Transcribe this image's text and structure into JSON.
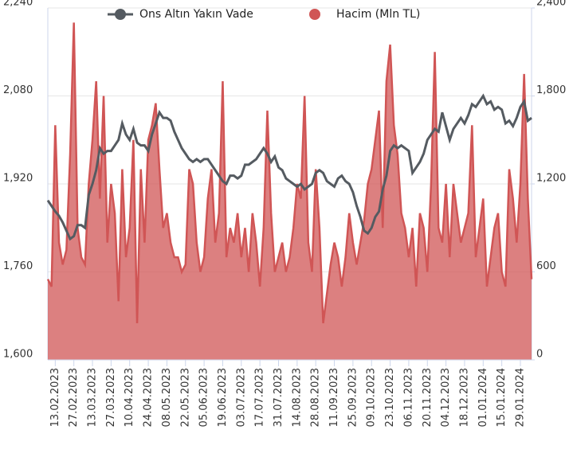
{
  "chart_data": {
    "type": "line",
    "categories": [
      null,
      null,
      "13.02.2023",
      null,
      null,
      null,
      null,
      "27.02.2023",
      null,
      null,
      null,
      null,
      "13.03.2023",
      null,
      null,
      null,
      null,
      "27.03.2023",
      null,
      null,
      null,
      null,
      "10.04.2023",
      null,
      null,
      null,
      null,
      "24.04.2023",
      null,
      null,
      null,
      null,
      "08.05.2023",
      null,
      null,
      null,
      null,
      "22.05.2023",
      null,
      null,
      null,
      null,
      "05.06.2023",
      null,
      null,
      null,
      null,
      "19.06.2023",
      null,
      null,
      null,
      null,
      "03.07.2023",
      null,
      null,
      null,
      null,
      "17.07.2023",
      null,
      null,
      null,
      null,
      "31.07.2023",
      null,
      null,
      null,
      null,
      "14.08.2023",
      null,
      null,
      null,
      null,
      "28.08.2023",
      null,
      null,
      null,
      null,
      "11.09.2023",
      null,
      null,
      null,
      null,
      "25.09.2023",
      null,
      null,
      null,
      null,
      "09.10.2023",
      null,
      null,
      null,
      null,
      "23.10.2023",
      null,
      null,
      null,
      null,
      "06.11.2023",
      null,
      null,
      null,
      null,
      "20.11.2023",
      null,
      null,
      null,
      null,
      "04.12.2023",
      null,
      null,
      null,
      null,
      "18.12.2023",
      null,
      null,
      null,
      null,
      "01.01.2024",
      null,
      null,
      null,
      null,
      "15.01.2024",
      null,
      null,
      null,
      null,
      "29.01.2024",
      null,
      null,
      null
    ],
    "series": [
      {
        "name": "Ons Altın Yakın Vade",
        "type": "line",
        "axis": "y",
        "color": "#555b61",
        "values": [
          1890,
          1880,
          1870,
          1862,
          1850,
          1835,
          1820,
          1825,
          1845,
          1845,
          1840,
          1900,
          1920,
          1945,
          1985,
          1975,
          1980,
          1980,
          1990,
          2000,
          2030,
          2010,
          2000,
          2020,
          1995,
          1990,
          1990,
          1980,
          2010,
          2030,
          2050,
          2040,
          2040,
          2035,
          2015,
          2000,
          1985,
          1975,
          1965,
          1960,
          1965,
          1960,
          1965,
          1965,
          1955,
          1945,
          1935,
          1925,
          1920,
          1935,
          1935,
          1930,
          1935,
          1955,
          1955,
          1960,
          1965,
          1975,
          1985,
          1975,
          1960,
          1970,
          1950,
          1945,
          1930,
          1925,
          1920,
          1915,
          1920,
          1910,
          1915,
          1920,
          1940,
          1945,
          1940,
          1925,
          1920,
          1915,
          1930,
          1935,
          1925,
          1920,
          1905,
          1880,
          1860,
          1835,
          1830,
          1840,
          1860,
          1870,
          1910,
          1935,
          1980,
          1990,
          1985,
          1990,
          1985,
          1980,
          1940,
          1950,
          1960,
          1975,
          2000,
          2010,
          2020,
          2015,
          2050,
          2025,
          2000,
          2020,
          2030,
          2040,
          2030,
          2045,
          2065,
          2060,
          2070,
          2080,
          2065,
          2070,
          2055,
          2060,
          2055,
          2030,
          2035,
          2025,
          2040,
          2060,
          2070,
          2035,
          2040
        ]
      },
      {
        "name": "Hacim (Mln TL)",
        "type": "area",
        "axis": "y2",
        "color": "#d05555",
        "values": [
          550,
          500,
          1600,
          800,
          650,
          750,
          1400,
          2300,
          900,
          700,
          650,
          1200,
          1500,
          1900,
          1100,
          1800,
          800,
          1200,
          1000,
          400,
          1300,
          700,
          900,
          1500,
          250,
          1300,
          800,
          1500,
          1600,
          1750,
          1300,
          900,
          1000,
          800,
          700,
          700,
          600,
          650,
          1300,
          1200,
          800,
          600,
          700,
          1100,
          1300,
          800,
          1000,
          1900,
          700,
          900,
          800,
          1000,
          700,
          900,
          600,
          1000,
          800,
          500,
          900,
          1700,
          1000,
          600,
          700,
          800,
          600,
          700,
          900,
          1200,
          1100,
          1800,
          800,
          600,
          1300,
          900,
          250,
          450,
          650,
          800,
          700,
          500,
          700,
          1000,
          800,
          650,
          800,
          950,
          1200,
          1300,
          1500,
          1700,
          900,
          1900,
          2150,
          1600,
          1400,
          1000,
          900,
          700,
          900,
          500,
          1000,
          900,
          600,
          1200,
          2100,
          900,
          800,
          1200,
          700,
          1200,
          1000,
          800,
          900,
          1000,
          1600,
          700,
          900,
          1100,
          500,
          700,
          900,
          1000,
          600,
          500,
          1300,
          1100,
          800,
          1200,
          1950,
          1100,
          550
        ]
      }
    ],
    "ylim": [
      1600,
      2240
    ],
    "yticks": [
      {
        "value": 1600,
        "label": "1,600"
      },
      {
        "value": 1760,
        "label": "1,760"
      },
      {
        "value": 1920,
        "label": "1,920"
      },
      {
        "value": 2080,
        "label": "2,080"
      },
      {
        "value": 2240,
        "label": "2,240"
      }
    ],
    "y2lim": [
      0,
      2400
    ],
    "y2ticks": [
      0,
      600,
      {
        "value": 1200,
        "label": "1,200"
      },
      {
        "value": 1800,
        "label": "1,800"
      },
      {
        "value": 2400,
        "label": "2,400"
      }
    ],
    "grid": true
  }
}
